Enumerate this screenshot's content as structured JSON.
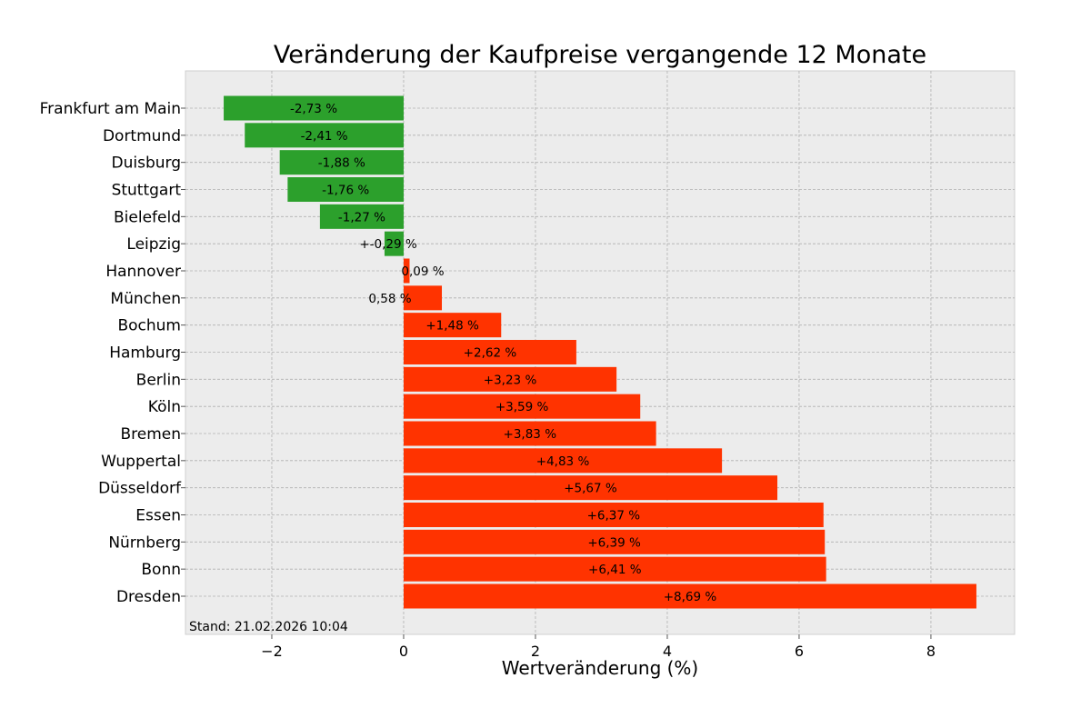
{
  "chart_data": {
    "type": "bar",
    "orientation": "horizontal",
    "title": "Veränderung der Kaufpreise vergangende 12 Monate",
    "xlabel": "Wertveränderung (%)",
    "ylabel": "",
    "xlim": [
      -3.31,
      9.27
    ],
    "xticks": [
      -2,
      0,
      2,
      4,
      6,
      8
    ],
    "xtick_labels": [
      "−2",
      "0",
      "2",
      "4",
      "6",
      "8"
    ],
    "grid": true,
    "annotation": "Stand: 21.02.2026 10:04",
    "colors": {
      "negative": "#2ca02c",
      "positive": "#ff3300",
      "background": "#ececec",
      "grid": "#b0b0b0"
    },
    "categories": [
      "Frankfurt am Main",
      "Dortmund",
      "Duisburg",
      "Stuttgart",
      "Bielefeld",
      "Leipzig",
      "Hannover",
      "München",
      "Bochum",
      "Hamburg",
      "Berlin",
      "Köln",
      "Bremen",
      "Wuppertal",
      "Düsseldorf",
      "Essen",
      "Nürnberg",
      "Bonn",
      "Dresden"
    ],
    "values": [
      -2.73,
      -2.41,
      -1.88,
      -1.76,
      -1.27,
      -0.29,
      0.09,
      0.58,
      1.48,
      2.62,
      3.23,
      3.59,
      3.83,
      4.83,
      5.67,
      6.37,
      6.39,
      6.41,
      8.69
    ],
    "data_labels": [
      "-2,73 %",
      "-2,41 %",
      "-1,88 %",
      "-1,76 %",
      "-1,27 %",
      "+-0,29 %",
      "0,09 %",
      "0,58 %",
      "+1,48 %",
      "+2,62 %",
      "+3,23 %",
      "+3,59 %",
      "+3,83 %",
      "+4,83 %",
      "+5,67 %",
      "+6,37 %",
      "+6,39 %",
      "+6,41 %",
      "+8,69 %"
    ]
  }
}
